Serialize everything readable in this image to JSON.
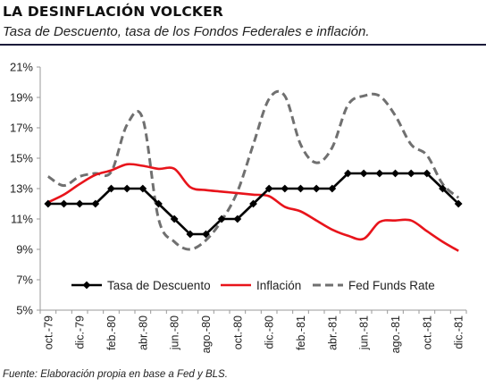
{
  "header": {
    "title": "LA DESINFLACIÓN VOLCKER",
    "subtitle": "Tasa de Descuento, tasa de los Fondos Federales e inflación."
  },
  "footer": {
    "source": "Fuente: Elaboración propia en base a Fed y BLS."
  },
  "chart_data": {
    "type": "line",
    "title": "",
    "xlabel": "",
    "ylabel": "",
    "ylim": [
      5,
      21
    ],
    "yticks": [
      5,
      7,
      9,
      11,
      13,
      15,
      17,
      19,
      21
    ],
    "ytick_format": "%",
    "grid": false,
    "legend_position": "bottom-inside",
    "x_tick_labels": [
      "oct.-79",
      "dic.-79",
      "feb.-80",
      "abr.-80",
      "jun.-80",
      "ago.-80",
      "oct.-80",
      "dic.-80",
      "feb.-81",
      "abr.-81",
      "jun.-81",
      "ago.-81",
      "oct.-81",
      "dic.-81"
    ],
    "x": [
      "oct.-79",
      "nov.-79",
      "dic.-79",
      "ene.-80",
      "feb.-80",
      "mar.-80",
      "abr.-80",
      "may.-80",
      "jun.-80",
      "jul.-80",
      "ago.-80",
      "sep.-80",
      "oct.-80",
      "nov.-80",
      "dic.-80",
      "ene.-81",
      "feb.-81",
      "mar.-81",
      "abr.-81",
      "may.-81",
      "jun.-81",
      "jul.-81",
      "ago.-81",
      "sep.-81",
      "oct.-81",
      "nov.-81",
      "dic.-81"
    ],
    "series": [
      {
        "name": "Tasa de Descuento",
        "color": "#000000",
        "style": "solid-markers",
        "values": [
          12,
          12,
          12,
          12,
          13,
          13,
          13,
          12,
          11,
          10,
          10,
          11,
          11,
          12,
          13,
          13,
          13,
          13,
          13,
          14,
          14,
          14,
          14,
          14,
          14,
          13,
          12
        ]
      },
      {
        "name": "Inflación",
        "color": "#e8141b",
        "style": "solid",
        "values": [
          12.1,
          12.6,
          13.3,
          13.9,
          14.2,
          14.6,
          14.5,
          14.3,
          14.3,
          13.1,
          12.9,
          12.8,
          12.7,
          12.6,
          12.5,
          11.8,
          11.5,
          10.9,
          10.3,
          9.9,
          9.7,
          10.8,
          10.9,
          10.9,
          10.2,
          9.5,
          8.9
        ]
      },
      {
        "name": "Fed Funds Rate",
        "color": "#707070",
        "style": "dashed",
        "values": [
          13.8,
          13.2,
          13.8,
          14.0,
          14.1,
          17.2,
          17.6,
          11.0,
          9.5,
          9.0,
          9.6,
          10.9,
          12.8,
          15.9,
          18.9,
          19.1,
          15.9,
          14.7,
          15.7,
          18.5,
          19.1,
          19.1,
          17.8,
          15.9,
          15.2,
          13.3,
          12.4
        ]
      }
    ]
  }
}
